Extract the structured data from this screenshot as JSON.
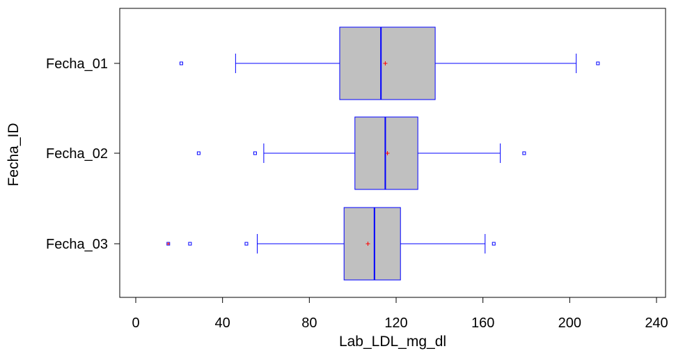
{
  "chart_data": {
    "type": "boxplot",
    "title": "",
    "xlabel": "Lab_LDL_mg_dl",
    "ylabel": "Fecha_ID",
    "xlim": [
      -8,
      248
    ],
    "xticks": [
      0,
      40,
      80,
      120,
      160,
      200,
      240
    ],
    "grid": false,
    "colors": {
      "box_fill": "#c0c0c0",
      "box_stroke": "#0000ff",
      "whisker": "#0000ff",
      "outlier": "#0000ff",
      "mean": "#ff0000",
      "far_outlier": "#ff0000"
    },
    "categories": [
      "Fecha_01",
      "Fecha_02",
      "Fecha_03"
    ],
    "series": [
      {
        "category": "Fecha_01",
        "whisker_low": 46,
        "q1": 94,
        "median": 113,
        "q3": 138,
        "whisker_high": 203,
        "mean": 115,
        "outliers": [
          21,
          213
        ],
        "far_outliers": []
      },
      {
        "category": "Fecha_02",
        "whisker_low": 59,
        "q1": 101,
        "median": 115,
        "q3": 130,
        "whisker_high": 168,
        "mean": 116,
        "outliers": [
          29,
          55,
          179
        ],
        "far_outliers": []
      },
      {
        "category": "Fecha_03",
        "whisker_low": 56,
        "q1": 96,
        "median": 110,
        "q3": 122,
        "whisker_high": 161,
        "mean": 107,
        "outliers": [
          25,
          51,
          165
        ],
        "far_outliers": [
          15
        ]
      }
    ]
  }
}
